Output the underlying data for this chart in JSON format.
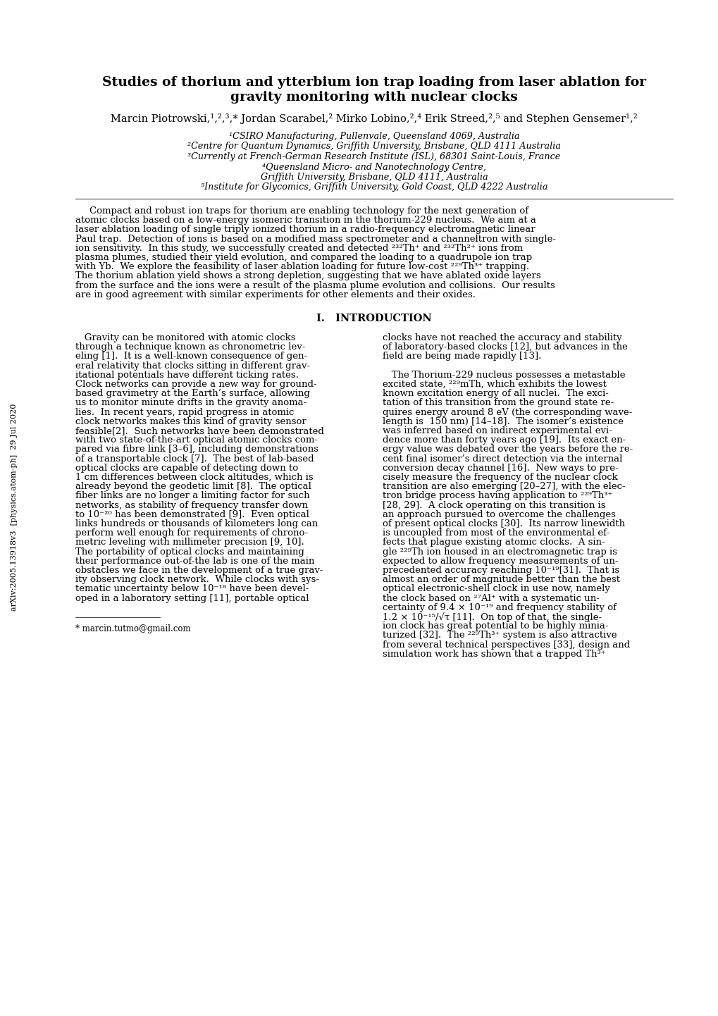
{
  "title_line1": "Studies of thorium and ytterbium ion trap loading from laser ablation for",
  "title_line2": "gravity monitoring with nuclear clocks",
  "author_line": "Marcin Piotrowski,¹,²,³,* Jordan Scarabel,² Mirko Lobino,²,⁴ Erik Streed,²,⁵ and Stephen Gensemer¹,²",
  "affil1": "¹CSIRO Manufacturing, Pullenvale, Queensland 4069, Australia",
  "affil2": "²Centre for Quantum Dynamics, Griffith University, Brisbane, QLD 4111 Australia",
  "affil3": "³Currently at French-German Research Institute (ISL), 68301 Saint-Louis, France",
  "affil4": "⁴Queensland Micro- and Nanotechnology Centre,",
  "affil4b": "Griffith University, Brisbane, QLD 4111, Australia",
  "affil5": "⁵Institute for Glycomics, Griffith University, Gold Coast, QLD 4222 Australia",
  "abstract_lines": [
    "Compact and robust ion traps for thorium are enabling technology for the next generation of",
    "atomic clocks based on a low-energy isomeric transition in the thorium-229 nucleus.  We aim at a",
    "laser ablation loading of single triply ionized thorium in a radio-frequency electromagnetic linear",
    "Paul trap.  Detection of ions is based on a modified mass spectrometer and a channeltron with single-",
    "ion sensitivity.  In this study, we successfully created and detected ²³²Th⁺ and ²³²Th²⁺ ions from",
    "plasma plumes, studied their yield evolution, and compared the loading to a quadrupole ion trap",
    "with Yb.  We explore the feasibility of laser ablation loading for future low-cost ²²⁹Th³⁺ trapping.",
    "The thorium ablation yield shows a strong depletion, suggesting that we have ablated oxide layers",
    "from the surface and the ions were a result of the plasma plume evolution and collisions.  Our results",
    "are in good agreement with similar experiments for other elements and their oxides."
  ],
  "section_title": "I.   INTRODUCTION",
  "intro_left_lines": [
    "   Gravity can be monitored with atomic clocks",
    "through a technique known as chronometric lev-",
    "eling [1].  It is a well-known consequence of gen-",
    "eral relativity that clocks sitting in different grav-",
    "itational potentials have different ticking rates.",
    "Clock networks can provide a new way for ground-",
    "based gravimetry at the Earth’s surface, allowing",
    "us to monitor minute drifts in the gravity anoma-",
    "lies.  In recent years, rapid progress in atomic",
    "clock networks makes this kind of gravity sensor",
    "feasible[2].  Such networks have been demonstrated",
    "with two state-of-the-art optical atomic clocks com-",
    "pared via fibre link [3–6], including demonstrations",
    "of a transportable clock [7].  The best of lab-based",
    "optical clocks are capable of detecting down to",
    "1 cm differences between clock altitudes, which is",
    "already beyond the geodetic limit [8].  The optical",
    "fiber links are no longer a limiting factor for such",
    "networks, as stability of frequency transfer down",
    "to 10⁻²⁰ has been demonstrated [9].  Even optical",
    "links hundreds or thousands of kilometers long can",
    "perform well enough for requirements of chrono-",
    "metric leveling with millimeter precision [9, 10].",
    "The portability of optical clocks and maintaining",
    "their performance out-of-the lab is one of the main",
    "obstacles we face in the development of a true grav-",
    "ity observing clock network.  While clocks with sys-",
    "tematic uncertainty below 10⁻¹⁸ have been devel-",
    "oped in a laboratory setting [11], portable optical"
  ],
  "intro_right_lines": [
    "clocks have not reached the accuracy and stability",
    "of laboratory-based clocks [12], but advances in the",
    "field are being made rapidly [13].",
    "",
    "   The Thorium-229 nucleus possesses a metastable",
    "excited state, ²²⁹mTh, which exhibits the lowest",
    "known excitation energy of all nuclei.  The exci-",
    "tation of this transition from the ground state re-",
    "quires energy around 8 eV (the corresponding wave-",
    "length is  150 nm) [14–18].  The isomer’s existence",
    "was inferred based on indirect experimental evi-",
    "dence more than forty years ago [19].  Its exact en-",
    "ergy value was debated over the years before the re-",
    "cent final isomer’s direct detection via the internal",
    "conversion decay channel [16].  New ways to pre-",
    "cisely measure the frequency of the nuclear clock",
    "transition are also emerging [20–27], with the elec-",
    "tron bridge process having application to ²²⁹Th³⁺",
    "[28, 29].  A clock operating on this transition is",
    "an approach pursued to overcome the challenges",
    "of present optical clocks [30].  Its narrow linewidth",
    "is uncoupled from most of the environmental ef-",
    "fects that plague existing atomic clocks.  A sin-",
    "gle ²²⁹Th ion housed in an electromagnetic trap is",
    "expected to allow frequency measurements of un-",
    "precedented accuracy reaching 10⁻¹⁹[31].  That is",
    "almost an order of magnitude better than the best",
    "optical electronic-shell clock in use now, namely",
    "the clock based on ²⁷Al⁺ with a systematic un-",
    "certainty of 9.4 × 10⁻¹⁹ and frequency stability of",
    "1.2 × 10⁻¹⁵/√τ [11].  On top of that, the single-",
    "ion clock has great potential to be highly minia-",
    "turized [32].  The ²²⁹Th³⁺ system is also attractive",
    "from several technical perspectives [33], design and",
    "simulation work has shown that a trapped Th³⁺"
  ],
  "arxiv_label": "arXiv:2005.13918v3  [physics.atom-ph]  29 Jul 2020",
  "footnote_line": "* marcin.tutmo@gmail.com",
  "bg": "#ffffff"
}
